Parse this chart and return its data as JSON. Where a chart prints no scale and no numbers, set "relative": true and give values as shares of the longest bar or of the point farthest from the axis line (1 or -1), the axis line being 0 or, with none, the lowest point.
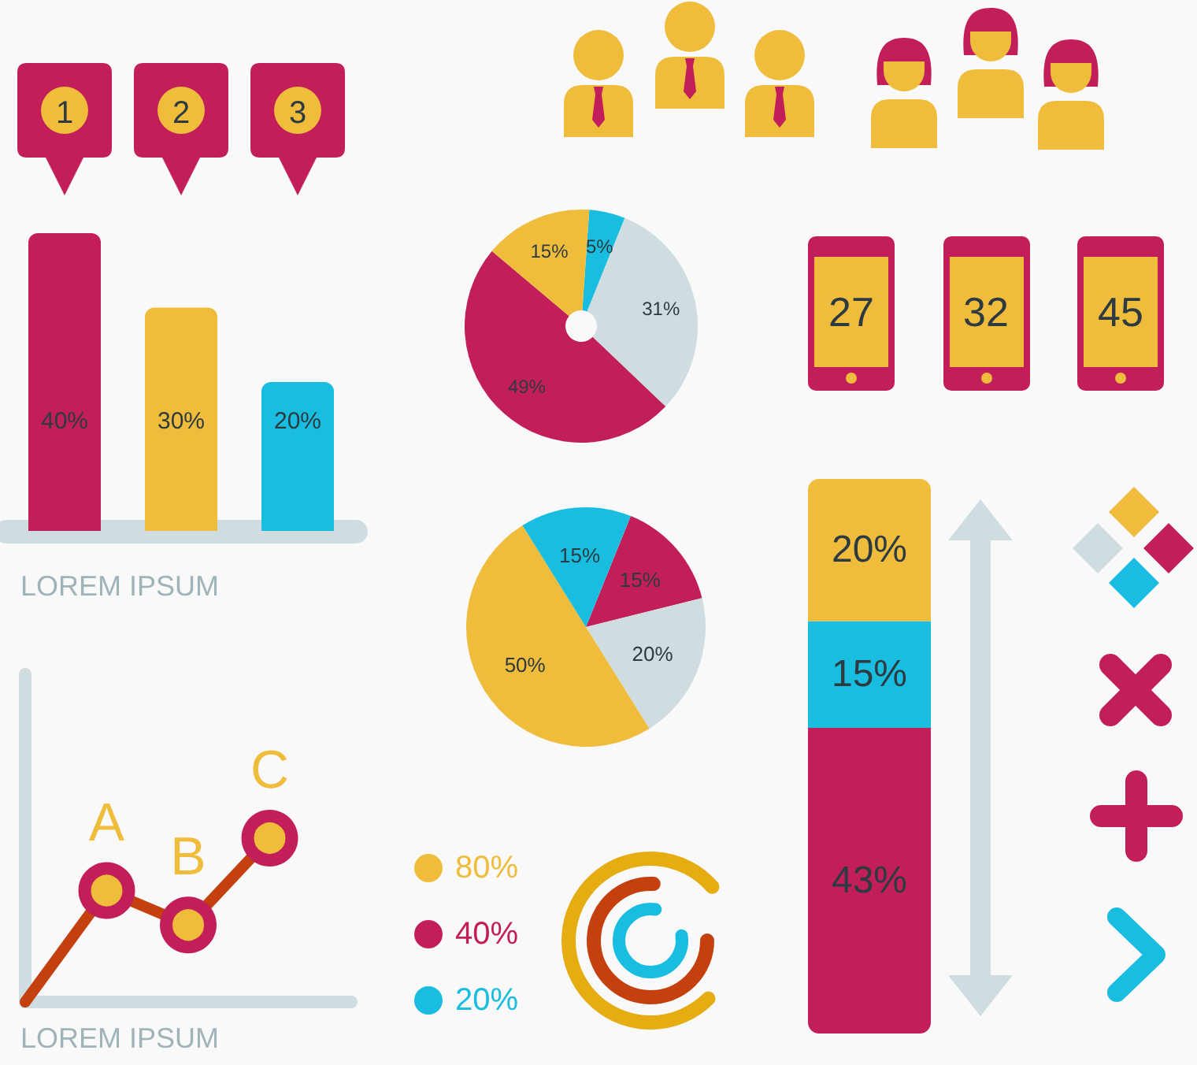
{
  "chart_data": [
    {
      "type": "bar",
      "categories": [
        "1",
        "2",
        "3"
      ],
      "values": [
        40,
        30,
        20
      ],
      "colors": [
        "#c21f5a",
        "#efbc3b",
        "#19bde0"
      ],
      "value_labels": [
        "40%",
        "30%",
        "20%"
      ],
      "xlabel": "LOREM IPSUM"
    },
    {
      "type": "donut",
      "categories": [
        null,
        null,
        null,
        null
      ],
      "values": [
        5,
        31,
        49,
        15
      ],
      "colors": [
        "#19bde0",
        "#cfdde1",
        "#c21f5a",
        "#efbc3b"
      ],
      "value_labels": [
        "5%",
        "31%",
        "49%",
        "15%"
      ]
    },
    {
      "type": "other",
      "annotations": [
        "27",
        "32",
        "45"
      ]
    },
    {
      "type": "pie",
      "categories": [
        null,
        null,
        null,
        null
      ],
      "values": [
        15,
        20,
        50,
        15
      ],
      "colors": [
        "#c21f5a",
        "#cfdde1",
        "#efbc3b",
        "#19bde0"
      ],
      "value_labels": [
        "15%",
        "20%",
        "50%",
        "15%"
      ]
    },
    {
      "type": "bar",
      "stacked": true,
      "categories": [
        null
      ],
      "series": [
        {
          "color": "#c21f5a",
          "values": [
            43
          ],
          "value_labels": [
            "43%"
          ]
        },
        {
          "color": "#19bde0",
          "values": [
            15
          ],
          "value_labels": [
            "15%"
          ]
        },
        {
          "color": "#efbc3b",
          "values": [
            20
          ],
          "value_labels": [
            "20%"
          ]
        }
      ]
    },
    {
      "type": "line",
      "relative": true,
      "categories": [
        null,
        null,
        null,
        null
      ],
      "values": [
        0,
        0.68,
        0.47,
        1
      ],
      "color": "#c4400e",
      "marker": "circle",
      "xlabel": "LOREM IPSUM",
      "annotations": [
        {
          "text": "A",
          "y": 0.68
        },
        {
          "text": "B",
          "y": 0.47
        },
        {
          "text": "C",
          "y": 1
        }
      ]
    },
    {
      "type": "other",
      "categories": [
        "80%",
        "40%",
        "20%"
      ],
      "colors": [
        "#efbc3b",
        "#c21f5a",
        "#19bde0"
      ]
    }
  ]
}
